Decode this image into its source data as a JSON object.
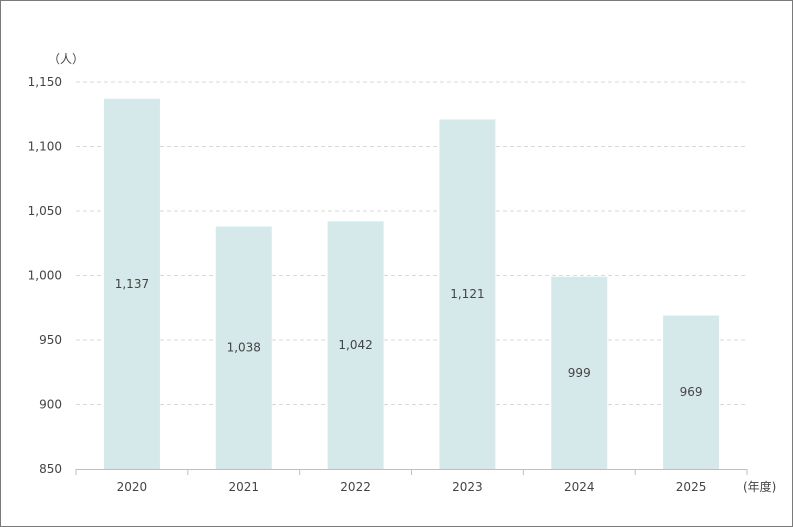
{
  "chart_data": {
    "type": "bar",
    "categories": [
      "2020",
      "2021",
      "2022",
      "2023",
      "2024",
      "2025"
    ],
    "values": [
      1137,
      1038,
      1042,
      1121,
      999,
      969
    ],
    "value_labels": [
      "1,137",
      "1,038",
      "1,042",
      "1,121",
      "999",
      "969"
    ],
    "y_unit": "（人）",
    "x_unit": "(年度)",
    "ylim": [
      850,
      1150
    ],
    "yticks": [
      850,
      900,
      950,
      1000,
      1050,
      1100,
      1150
    ],
    "ytick_labels": [
      "850",
      "900",
      "950",
      "1,000",
      "1,050",
      "1,100",
      "1,150"
    ],
    "grid": true,
    "colors": {
      "bar": "#d6e9ea",
      "grid": "#d9d9d9",
      "axis": "#bfbfbf",
      "text": "#444444"
    }
  }
}
